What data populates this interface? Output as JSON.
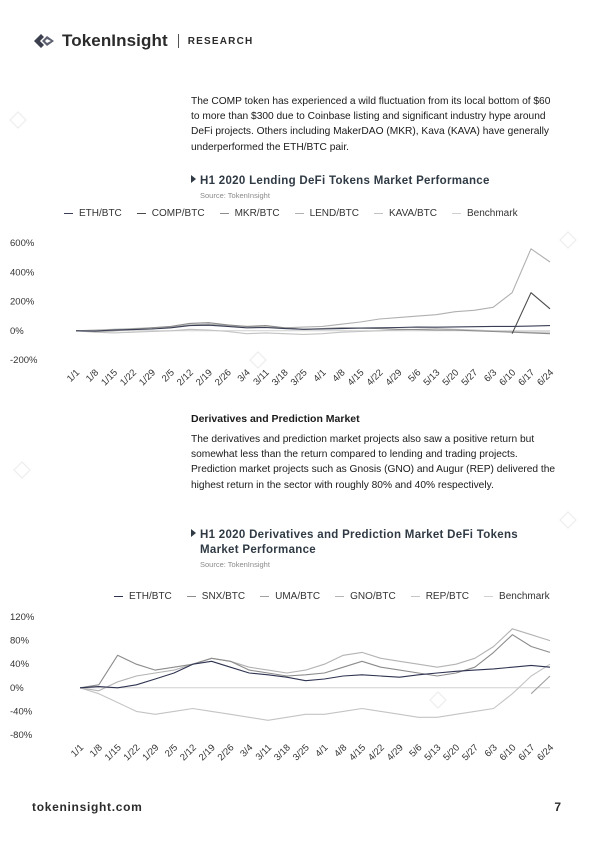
{
  "header": {
    "brand": "TokenInsight",
    "section": "RESEARCH"
  },
  "intro_paragraph": "The COMP token has experienced a wild fluctuation from its local bottom of $60 to more than $300 due to Coinbase listing and significant industry hype around DeFi projects. Others including MakerDAO (MKR), Kava (KAVA) have generally underperformed the ETH/BTC pair.",
  "chart1": {
    "title": "H1 2020 Lending DeFi Tokens Market Performance",
    "source": "Source: TokenInsight"
  },
  "subheading": "Derivatives and Prediction Market",
  "derivatives_paragraph": "The derivatives and prediction market projects also saw a positive return but somewhat less than the return compared to lending and trading projects. Prediction market projects such as Gnosis (GNO) and Augur (REP) delivered the highest return in the sector with roughly 80% and 40% respectively.",
  "chart2": {
    "title_line1": "H1 2020 Derivatives and Prediction Market DeFi Tokens",
    "title_line2": "Market Performance",
    "source": "Source: TokenInsight"
  },
  "footer": {
    "url": "tokeninsight.com",
    "page": "7"
  },
  "chart_data": [
    {
      "type": "line",
      "x": [
        "1/1",
        "1/8",
        "1/15",
        "1/22",
        "1/29",
        "2/5",
        "2/12",
        "2/19",
        "2/26",
        "3/4",
        "3/11",
        "3/18",
        "3/25",
        "4/1",
        "4/8",
        "4/15",
        "4/22",
        "4/29",
        "5/6",
        "5/13",
        "5/20",
        "5/27",
        "6/3",
        "6/10",
        "6/17",
        "6/24"
      ],
      "ylim": [
        -200,
        600
      ],
      "yticks": [
        -200,
        0,
        200,
        400,
        600
      ],
      "ytick_labels": [
        "-200%",
        "0%",
        "200%",
        "400%",
        "600%"
      ],
      "grid": false,
      "legend": "top",
      "series": [
        {
          "name": "ETH/BTC",
          "color": "#3a3f55",
          "values": [
            0,
            -2,
            5,
            8,
            12,
            20,
            35,
            38,
            30,
            20,
            22,
            15,
            10,
            12,
            15,
            18,
            20,
            22,
            25,
            24,
            26,
            28,
            30,
            30,
            32,
            35
          ]
        },
        {
          "name": "COMP/BTC",
          "color": "#4a4a4a",
          "values": [
            null,
            null,
            null,
            null,
            null,
            null,
            null,
            null,
            null,
            null,
            null,
            null,
            null,
            null,
            null,
            null,
            null,
            null,
            null,
            null,
            null,
            null,
            null,
            -20,
            260,
            150
          ]
        },
        {
          "name": "MKR/BTC",
          "color": "#8c8c8c",
          "values": [
            0,
            -5,
            0,
            10,
            20,
            30,
            50,
            55,
            40,
            30,
            35,
            20,
            10,
            15,
            20,
            18,
            15,
            10,
            8,
            5,
            5,
            0,
            -5,
            -10,
            -15,
            -20
          ]
        },
        {
          "name": "LEND/BTC",
          "color": "#b0b0b0",
          "values": [
            0,
            5,
            10,
            15,
            20,
            25,
            40,
            45,
            35,
            30,
            25,
            20,
            25,
            30,
            45,
            60,
            80,
            90,
            100,
            110,
            130,
            140,
            160,
            260,
            560,
            470
          ]
        },
        {
          "name": "KAVA/BTC",
          "color": "#c2c2c2",
          "values": [
            0,
            -10,
            -15,
            -10,
            -5,
            0,
            10,
            5,
            -5,
            -20,
            -15,
            -20,
            -25,
            -20,
            -10,
            -5,
            0,
            5,
            10,
            15,
            10,
            5,
            0,
            -5,
            -10,
            -10
          ]
        },
        {
          "name": "Benchmark",
          "color": "#cfcfcf",
          "values": [
            0,
            0,
            0,
            0,
            0,
            0,
            0,
            0,
            0,
            0,
            0,
            0,
            0,
            0,
            0,
            0,
            0,
            0,
            0,
            0,
            0,
            0,
            0,
            0,
            0,
            0
          ]
        }
      ]
    },
    {
      "type": "line",
      "x": [
        "1/1",
        "1/8",
        "1/15",
        "1/22",
        "1/29",
        "2/5",
        "2/12",
        "2/19",
        "2/26",
        "3/4",
        "3/11",
        "3/18",
        "3/25",
        "4/1",
        "4/8",
        "4/15",
        "4/22",
        "4/29",
        "5/6",
        "5/13",
        "5/20",
        "5/27",
        "6/3",
        "6/10",
        "6/17",
        "6/24"
      ],
      "ylim": [
        -80,
        120
      ],
      "yticks": [
        -80,
        -40,
        0,
        40,
        80,
        120
      ],
      "ytick_labels": [
        "-80%",
        "-40%",
        "0%",
        "40%",
        "80%",
        "120%"
      ],
      "grid": false,
      "legend": "top",
      "series": [
        {
          "name": "ETH/BTC",
          "color": "#2e3350",
          "values": [
            0,
            2,
            0,
            5,
            15,
            25,
            40,
            45,
            35,
            25,
            22,
            18,
            12,
            15,
            20,
            22,
            20,
            18,
            22,
            25,
            28,
            30,
            32,
            35,
            38,
            35
          ]
        },
        {
          "name": "SNX/BTC",
          "color": "#8c8c8c",
          "values": [
            0,
            5,
            55,
            40,
            30,
            35,
            40,
            50,
            45,
            30,
            25,
            20,
            22,
            25,
            35,
            45,
            35,
            30,
            25,
            20,
            25,
            35,
            60,
            90,
            70,
            60
          ]
        },
        {
          "name": "UMA/BTC",
          "color": "#a0a0a0",
          "values": [
            null,
            null,
            null,
            null,
            null,
            null,
            null,
            null,
            null,
            null,
            null,
            null,
            null,
            null,
            null,
            null,
            null,
            null,
            null,
            null,
            null,
            null,
            null,
            null,
            -10,
            20
          ]
        },
        {
          "name": "GNO/BTC",
          "color": "#b3b3b3",
          "values": [
            0,
            -5,
            10,
            20,
            25,
            30,
            40,
            50,
            45,
            35,
            30,
            25,
            30,
            40,
            55,
            60,
            50,
            45,
            40,
            35,
            40,
            50,
            70,
            100,
            90,
            80
          ]
        },
        {
          "name": "REP/BTC",
          "color": "#c4c4c4",
          "values": [
            0,
            -10,
            -25,
            -40,
            -45,
            -40,
            -35,
            -40,
            -45,
            -50,
            -55,
            -50,
            -45,
            -45,
            -40,
            -35,
            -40,
            -45,
            -50,
            -50,
            -45,
            -40,
            -35,
            -10,
            20,
            40
          ]
        },
        {
          "name": "Benchmark",
          "color": "#d0d0d0",
          "values": [
            0,
            0,
            0,
            0,
            0,
            0,
            0,
            0,
            0,
            0,
            0,
            0,
            0,
            0,
            0,
            0,
            0,
            0,
            0,
            0,
            0,
            0,
            0,
            0,
            0,
            0
          ]
        }
      ]
    }
  ]
}
